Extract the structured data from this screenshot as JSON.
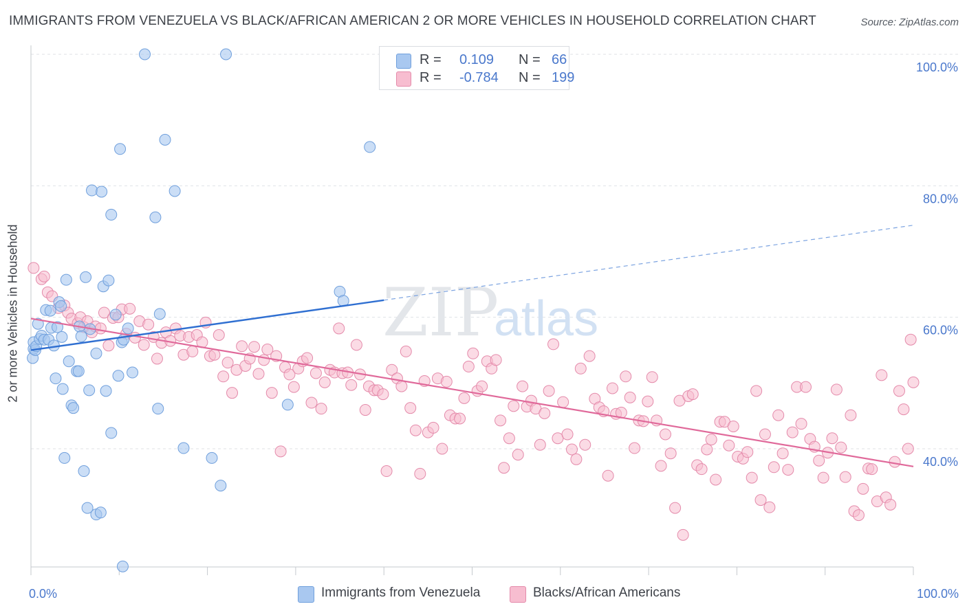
{
  "title": "IMMIGRANTS FROM VENEZUELA VS BLACK/AFRICAN AMERICAN 2 OR MORE VEHICLES IN HOUSEHOLD CORRELATION CHART",
  "source": "Source: ZipAtlas.com",
  "watermark": {
    "zip": "ZIP",
    "atlas": "atlas"
  },
  "legend": {
    "rows": [
      {
        "r_label": "R =",
        "r_value": "0.109",
        "n_label": "N =",
        "n_value": "66",
        "color": "#a9c8f0",
        "border": "#6f9fdc"
      },
      {
        "r_label": "R =",
        "r_value": "-0.784",
        "n_label": "N =",
        "n_value": "199",
        "color": "#f7bdd0",
        "border": "#e48aaa"
      }
    ]
  },
  "bottom_legend": [
    {
      "label": "Immigrants from Venezuela",
      "color": "#a9c8f0",
      "border": "#6f9fdc"
    },
    {
      "label": "Blacks/African Americans",
      "color": "#f7bdd0",
      "border": "#e48aaa"
    }
  ],
  "chart_data": {
    "type": "scatter",
    "title": "IMMIGRANTS FROM VENEZUELA VS BLACK/AFRICAN AMERICAN 2 OR MORE VEHICLES IN HOUSEHOLD CORRELATION CHART",
    "xlabel": "",
    "ylabel": "2 or more Vehicles in Household",
    "xlim": [
      0,
      100
    ],
    "ylim": [
      20,
      102
    ],
    "x_tick_labels": [
      {
        "value": 0,
        "label": "0.0%"
      },
      {
        "value": 100,
        "label": "100.0%"
      }
    ],
    "y_tick_labels": [
      {
        "value": 40,
        "label": "40.0%"
      },
      {
        "value": 60,
        "label": "60.0%"
      },
      {
        "value": 80,
        "label": "80.0%"
      },
      {
        "value": 100,
        "label": "100.0%"
      }
    ],
    "grid": true,
    "legend_position": "top-center",
    "series": [
      {
        "name": "Immigrants from Venezuela",
        "color": "#6f9fdc",
        "fill": "#a9c8f0",
        "trend": {
          "x": [
            0,
            40
          ],
          "y": [
            55.0,
            62.6
          ],
          "dashed_to": {
            "x": 100,
            "y": 74.0
          }
        },
        "points": [
          [
            0.2,
            53.8
          ],
          [
            0.3,
            55.2
          ],
          [
            0.3,
            56.2
          ],
          [
            0.5,
            55.0
          ],
          [
            0.6,
            55.6
          ],
          [
            0.8,
            59.0
          ],
          [
            1.0,
            56.7
          ],
          [
            1.2,
            57.2
          ],
          [
            1.5,
            56.6
          ],
          [
            1.7,
            61.1
          ],
          [
            2.0,
            56.6
          ],
          [
            2.2,
            61.0
          ],
          [
            2.3,
            58.4
          ],
          [
            2.6,
            55.7
          ],
          [
            2.8,
            50.7
          ],
          [
            3.0,
            58.5
          ],
          [
            3.2,
            62.3
          ],
          [
            3.4,
            61.7
          ],
          [
            3.5,
            57.0
          ],
          [
            3.6,
            49.1
          ],
          [
            3.8,
            38.6
          ],
          [
            4.0,
            65.7
          ],
          [
            4.3,
            53.3
          ],
          [
            4.6,
            46.6
          ],
          [
            4.8,
            46.2
          ],
          [
            5.2,
            51.8
          ],
          [
            5.4,
            51.8
          ],
          [
            5.5,
            58.6
          ],
          [
            5.7,
            57.1
          ],
          [
            6.0,
            36.6
          ],
          [
            6.2,
            66.1
          ],
          [
            6.4,
            31.0
          ],
          [
            6.6,
            48.9
          ],
          [
            6.7,
            58.2
          ],
          [
            6.9,
            79.3
          ],
          [
            7.4,
            30.0
          ],
          [
            7.4,
            54.5
          ],
          [
            7.9,
            30.3
          ],
          [
            8.0,
            79.1
          ],
          [
            8.2,
            64.7
          ],
          [
            8.5,
            48.8
          ],
          [
            8.8,
            65.6
          ],
          [
            9.1,
            75.6
          ],
          [
            9.1,
            42.4
          ],
          [
            9.6,
            60.4
          ],
          [
            9.9,
            51.1
          ],
          [
            10.1,
            85.6
          ],
          [
            10.3,
            56.2
          ],
          [
            10.4,
            22.1
          ],
          [
            10.5,
            56.6
          ],
          [
            11.0,
            58.3
          ],
          [
            11.5,
            51.6
          ],
          [
            12.9,
            100.0
          ],
          [
            14.1,
            75.2
          ],
          [
            14.4,
            46.1
          ],
          [
            14.6,
            60.5
          ],
          [
            15.2,
            87.0
          ],
          [
            16.3,
            79.2
          ],
          [
            17.3,
            40.1
          ],
          [
            20.5,
            38.6
          ],
          [
            21.5,
            34.4
          ],
          [
            22.1,
            100.0
          ],
          [
            29.1,
            46.7
          ],
          [
            35.0,
            63.9
          ],
          [
            35.4,
            62.5
          ],
          [
            38.4,
            85.9
          ]
        ]
      },
      {
        "name": "Blacks/African Americans",
        "color": "#e48aaa",
        "fill": "#f7bdd0",
        "trend": {
          "x": [
            0,
            100
          ],
          "y": [
            59.8,
            37.3
          ]
        },
        "points": [
          [
            0.3,
            67.5
          ],
          [
            1.2,
            65.8
          ],
          [
            1.5,
            66.2
          ],
          [
            1.9,
            63.8
          ],
          [
            2.4,
            63.2
          ],
          [
            3.1,
            61.4
          ],
          [
            3.8,
            61.8
          ],
          [
            4.2,
            60.7
          ],
          [
            4.6,
            59.8
          ],
          [
            5.3,
            59.1
          ],
          [
            5.6,
            60.0
          ],
          [
            6.0,
            58.5
          ],
          [
            6.4,
            59.4
          ],
          [
            6.9,
            57.7
          ],
          [
            7.3,
            58.6
          ],
          [
            7.9,
            58.3
          ],
          [
            8.3,
            60.7
          ],
          [
            8.8,
            55.7
          ],
          [
            9.3,
            59.9
          ],
          [
            9.9,
            60.0
          ],
          [
            10.3,
            61.2
          ],
          [
            10.8,
            57.5
          ],
          [
            11.2,
            61.3
          ],
          [
            11.8,
            56.9
          ],
          [
            12.3,
            59.4
          ],
          [
            12.8,
            55.8
          ],
          [
            13.3,
            58.9
          ],
          [
            13.9,
            57.0
          ],
          [
            14.3,
            53.7
          ],
          [
            14.8,
            56.1
          ],
          [
            15.3,
            57.7
          ],
          [
            15.8,
            56.4
          ],
          [
            16.4,
            58.3
          ],
          [
            16.9,
            57.2
          ],
          [
            17.3,
            54.3
          ],
          [
            17.9,
            57.0
          ],
          [
            18.3,
            54.8
          ],
          [
            18.8,
            57.3
          ],
          [
            19.4,
            56.2
          ],
          [
            19.8,
            59.2
          ],
          [
            20.3,
            54.1
          ],
          [
            20.8,
            54.3
          ],
          [
            21.3,
            57.3
          ],
          [
            21.8,
            51.0
          ],
          [
            22.3,
            53.1
          ],
          [
            22.8,
            48.5
          ],
          [
            23.3,
            52.0
          ],
          [
            23.9,
            55.6
          ],
          [
            24.3,
            52.6
          ],
          [
            24.8,
            53.7
          ],
          [
            25.3,
            55.5
          ],
          [
            25.8,
            51.4
          ],
          [
            26.4,
            53.5
          ],
          [
            26.8,
            55.1
          ],
          [
            27.3,
            48.5
          ],
          [
            27.8,
            54.1
          ],
          [
            28.3,
            39.6
          ],
          [
            28.8,
            52.4
          ],
          [
            29.3,
            51.3
          ],
          [
            29.8,
            49.4
          ],
          [
            30.3,
            52.2
          ],
          [
            30.8,
            53.3
          ],
          [
            31.3,
            53.8
          ],
          [
            31.8,
            47.0
          ],
          [
            32.3,
            51.5
          ],
          [
            32.9,
            46.1
          ],
          [
            33.3,
            50.1
          ],
          [
            33.9,
            52.0
          ],
          [
            34.4,
            51.6
          ],
          [
            34.9,
            58.3
          ],
          [
            35.3,
            51.5
          ],
          [
            35.9,
            51.6
          ],
          [
            36.3,
            49.7
          ],
          [
            36.9,
            55.8
          ],
          [
            37.3,
            51.3
          ],
          [
            37.9,
            45.9
          ],
          [
            38.3,
            49.5
          ],
          [
            38.9,
            48.9
          ],
          [
            39.3,
            48.9
          ],
          [
            39.9,
            48.3
          ],
          [
            40.3,
            36.6
          ],
          [
            40.9,
            52.0
          ],
          [
            41.5,
            50.7
          ],
          [
            42.0,
            49.5
          ],
          [
            42.5,
            54.8
          ],
          [
            43.0,
            46.2
          ],
          [
            43.6,
            42.8
          ],
          [
            44.1,
            36.2
          ],
          [
            44.6,
            50.3
          ],
          [
            45.0,
            42.5
          ],
          [
            45.6,
            43.2
          ],
          [
            46.1,
            50.7
          ],
          [
            46.6,
            40.0
          ],
          [
            47.1,
            50.2
          ],
          [
            47.5,
            45.1
          ],
          [
            48.1,
            44.6
          ],
          [
            48.6,
            44.6
          ],
          [
            49.1,
            47.7
          ],
          [
            49.6,
            52.5
          ],
          [
            50.1,
            54.5
          ],
          [
            50.6,
            48.8
          ],
          [
            51.1,
            49.5
          ],
          [
            51.7,
            53.3
          ],
          [
            52.2,
            52.2
          ],
          [
            52.7,
            53.5
          ],
          [
            53.2,
            44.3
          ],
          [
            53.6,
            37.1
          ],
          [
            54.2,
            41.6
          ],
          [
            54.7,
            46.5
          ],
          [
            55.2,
            39.1
          ],
          [
            55.7,
            49.5
          ],
          [
            56.2,
            46.4
          ],
          [
            56.7,
            47.3
          ],
          [
            57.2,
            46.1
          ],
          [
            57.7,
            40.6
          ],
          [
            58.2,
            45.4
          ],
          [
            58.7,
            48.8
          ],
          [
            59.2,
            55.9
          ],
          [
            59.7,
            41.6
          ],
          [
            60.3,
            47.1
          ],
          [
            60.8,
            42.2
          ],
          [
            61.3,
            39.9
          ],
          [
            61.8,
            38.4
          ],
          [
            62.3,
            52.2
          ],
          [
            62.8,
            40.6
          ],
          [
            63.3,
            54.1
          ],
          [
            63.9,
            47.6
          ],
          [
            64.4,
            46.3
          ],
          [
            64.9,
            45.7
          ],
          [
            65.4,
            35.9
          ],
          [
            65.9,
            49.2
          ],
          [
            66.3,
            45.3
          ],
          [
            66.9,
            45.5
          ],
          [
            67.4,
            51.0
          ],
          [
            67.9,
            47.8
          ],
          [
            68.4,
            40.1
          ],
          [
            68.9,
            44.3
          ],
          [
            69.4,
            44.2
          ],
          [
            69.9,
            47.2
          ],
          [
            70.4,
            50.9
          ],
          [
            70.9,
            44.3
          ],
          [
            71.4,
            37.4
          ],
          [
            71.9,
            42.2
          ],
          [
            72.5,
            39.3
          ],
          [
            73.0,
            31.0
          ],
          [
            73.5,
            47.3
          ],
          [
            73.9,
            26.9
          ],
          [
            74.5,
            48.0
          ],
          [
            75.0,
            48.3
          ],
          [
            75.5,
            37.5
          ],
          [
            76.0,
            36.9
          ],
          [
            76.6,
            39.9
          ],
          [
            77.1,
            41.4
          ],
          [
            77.6,
            35.3
          ],
          [
            78.1,
            44.1
          ],
          [
            78.6,
            44.1
          ],
          [
            79.1,
            40.5
          ],
          [
            79.6,
            43.4
          ],
          [
            80.1,
            38.8
          ],
          [
            80.7,
            38.5
          ],
          [
            81.2,
            39.5
          ],
          [
            81.7,
            35.6
          ],
          [
            82.2,
            48.8
          ],
          [
            82.7,
            32.2
          ],
          [
            83.2,
            42.2
          ],
          [
            83.7,
            31.1
          ],
          [
            84.2,
            37.2
          ],
          [
            84.7,
            45.1
          ],
          [
            85.2,
            39.3
          ],
          [
            85.8,
            36.8
          ],
          [
            86.3,
            42.5
          ],
          [
            86.8,
            49.4
          ],
          [
            87.3,
            43.8
          ],
          [
            87.8,
            49.4
          ],
          [
            88.3,
            41.5
          ],
          [
            88.8,
            40.3
          ],
          [
            89.3,
            38.2
          ],
          [
            89.8,
            35.6
          ],
          [
            90.3,
            39.4
          ],
          [
            90.8,
            41.6
          ],
          [
            91.3,
            49.0
          ],
          [
            91.8,
            40.2
          ],
          [
            92.3,
            35.7
          ],
          [
            92.9,
            45.1
          ],
          [
            93.3,
            30.5
          ],
          [
            93.8,
            29.9
          ],
          [
            94.3,
            33.9
          ],
          [
            94.9,
            37.0
          ],
          [
            95.3,
            36.9
          ],
          [
            95.9,
            32.0
          ],
          [
            96.4,
            51.2
          ],
          [
            96.9,
            32.6
          ],
          [
            97.4,
            31.5
          ],
          [
            97.9,
            38.0
          ],
          [
            98.4,
            48.8
          ],
          [
            98.9,
            46.0
          ],
          [
            99.4,
            40.0
          ],
          [
            99.7,
            56.6
          ],
          [
            100.0,
            50.1
          ]
        ]
      }
    ]
  }
}
